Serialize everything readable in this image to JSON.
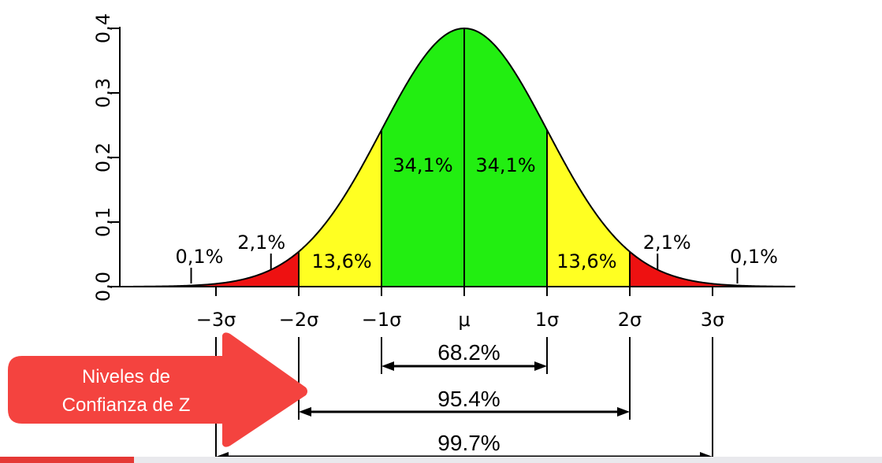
{
  "chart_data": {
    "type": "area",
    "title": "",
    "xlabel": "",
    "ylabel": "",
    "xlim": [
      -4,
      4
    ],
    "ylim": [
      0,
      0.4
    ],
    "y_ticks": [
      "0,0",
      "0,1",
      "0,2",
      "0,3",
      "0,4"
    ],
    "x_ticks": [
      {
        "value": -3,
        "label": "−3σ"
      },
      {
        "value": -2,
        "label": "−2σ"
      },
      {
        "value": -1,
        "label": "−1σ"
      },
      {
        "value": 0,
        "label": "μ"
      },
      {
        "value": 1,
        "label": "1σ"
      },
      {
        "value": 2,
        "label": "2σ"
      },
      {
        "value": 3,
        "label": "3σ"
      }
    ],
    "regions": [
      {
        "from": -3,
        "to": -2,
        "label": "2,1%",
        "color": "#ee1111"
      },
      {
        "from": -2,
        "to": -1,
        "label": "13,6%",
        "color": "#ffff22"
      },
      {
        "from": -1,
        "to": 0,
        "label": "34,1%",
        "color": "#22ee11"
      },
      {
        "from": 0,
        "to": 1,
        "label": "34,1%",
        "color": "#22ee11"
      },
      {
        "from": 1,
        "to": 2,
        "label": "13,6%",
        "color": "#ffff22"
      },
      {
        "from": 2,
        "to": 3,
        "label": "2,1%",
        "color": "#ee1111"
      }
    ],
    "tails": [
      {
        "side": "left",
        "label": "0,1%"
      },
      {
        "side": "right",
        "label": "0,1%"
      }
    ],
    "spans": [
      {
        "from": -1,
        "to": 1,
        "label": "68.2%"
      },
      {
        "from": -2,
        "to": 2,
        "label": "95.4%"
      },
      {
        "from": -3,
        "to": 3,
        "label": "99.7%"
      }
    ]
  },
  "callout": {
    "line1": "Niveles de",
    "line2": "Confianza de Z",
    "color": "#f4433f"
  }
}
